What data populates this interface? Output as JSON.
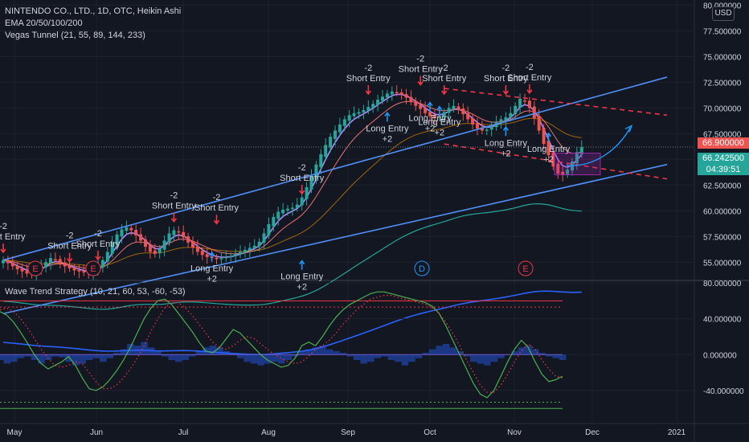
{
  "header": {
    "symbol_line": "NINTENDO CO., LTD., 1D, OTC, Heikin Ashi",
    "ema_line": "EMA 20/50/100/200",
    "vegas_line": "Vegas Tunnel (21, 55, 89, 144, 233)",
    "oscillator_line": "Wave Trend Strategy (10, 21, 60, 53, -60, -53)"
  },
  "currency_button": "USD",
  "price_tags": {
    "last_price": "66.900000",
    "current_price": "66.242500",
    "countdown": "04:39:51",
    "top_partial": "80.000000"
  },
  "colors": {
    "background": "#131722",
    "up": "#26a69a",
    "down": "#ef5350",
    "channel": "#4f8ff7",
    "signal_up": "#2196f3",
    "signal_down": "#f23645"
  },
  "signals": {
    "short": [
      "-2",
      "Short Entry"
    ],
    "long": [
      "Long Entry",
      "+2"
    ]
  },
  "earnings_markers": [
    "E",
    "E",
    "D",
    "E"
  ],
  "chart_data": [
    {
      "type": "candlestick",
      "title": "NINTENDO CO., LTD., 1D, OTC, Heikin Ashi",
      "x_ticks": [
        "May",
        "Jun",
        "Jul",
        "Aug",
        "Sep",
        "Oct",
        "Nov",
        "Dec",
        "2021"
      ],
      "y_ticks": [
        55,
        57.5,
        60,
        62.5,
        65,
        67.5,
        70,
        72.5,
        75,
        77.5,
        80
      ],
      "y_tick_labels": [
        "55.000000",
        "57.500000",
        "60.000000",
        "62.500000",
        "65.000000",
        "67.500000",
        "70.000000",
        "72.500000",
        "75.000000",
        "77.500000",
        "80.000000"
      ],
      "ylim": [
        53.3,
        80.5
      ],
      "grid": true,
      "closes": [
        55.2,
        54.9,
        54.6,
        54.3,
        54.1,
        53.9,
        53.9,
        54.2,
        54.6,
        55.0,
        55.4,
        55.3,
        54.9,
        54.6,
        54.4,
        54.2,
        54.1,
        54.0,
        53.9,
        54.1,
        54.6,
        55.2,
        56.0,
        56.9,
        57.7,
        58.2,
        58.4,
        58.1,
        57.6,
        57.1,
        56.5,
        56.0,
        55.8,
        56.3,
        57.1,
        57.8,
        58.1,
        57.9,
        57.4,
        56.9,
        56.4,
        56.0,
        55.7,
        55.5,
        55.4,
        55.3,
        55.4,
        55.5,
        55.6,
        55.8,
        56.0,
        56.2,
        56.4,
        56.6,
        57.0,
        57.8,
        58.7,
        59.4,
        59.9,
        60.1,
        60.2,
        60.3,
        60.6,
        61.3,
        62.3,
        63.4,
        64.5,
        65.5,
        66.4,
        67.2,
        67.8,
        68.4,
        68.9,
        69.3,
        69.5,
        69.6,
        69.8,
        70.1,
        70.4,
        70.8,
        71.1,
        71.4,
        71.6,
        71.5,
        71.3,
        71.0,
        70.6,
        70.2,
        69.9,
        69.5,
        69.2,
        69.0,
        69.2,
        69.6,
        70.0,
        70.2,
        69.9,
        69.4,
        68.9,
        68.4,
        68.0,
        67.8,
        67.9,
        68.2,
        68.6,
        68.9,
        69.1,
        69.5,
        70.2,
        70.9,
        70.7,
        70.0,
        69.0,
        67.8,
        66.5,
        65.4,
        64.3,
        63.6,
        63.5,
        64.0,
        64.8,
        65.7,
        66.2
      ],
      "channel_lines": {
        "upper_solid": [
          [
            2020.3,
            55.2
          ],
          [
            2020.9,
            73.0
          ]
        ],
        "lower_solid": [
          [
            2020.3,
            50.0
          ],
          [
            2020.9,
            64.5
          ]
        ],
        "upper_dashed": [
          [
            2020.7,
            71.9
          ],
          [
            2020.9,
            69.3
          ]
        ],
        "lower_dashed": [
          [
            2020.7,
            66.5
          ],
          [
            2020.9,
            63.1
          ]
        ]
      },
      "projection_box": [
        63.5,
        65.6
      ],
      "signals": [
        {
          "type": "short",
          "bar": 0,
          "price": 56.5
        },
        {
          "type": "short",
          "bar": 14,
          "price": 55.6
        },
        {
          "type": "short",
          "bar": 20,
          "price": 55.8
        },
        {
          "type": "short",
          "bar": 36,
          "price": 59.5
        },
        {
          "type": "short",
          "bar": 45,
          "price": 59.3
        },
        {
          "type": "short",
          "bar": 63,
          "price": 62.2
        },
        {
          "type": "short",
          "bar": 77,
          "price": 71.9
        },
        {
          "type": "short",
          "bar": 88,
          "price": 72.8
        },
        {
          "type": "short",
          "bar": 93,
          "price": 71.9
        },
        {
          "type": "short",
          "bar": 106,
          "price": 71.9
        },
        {
          "type": "short",
          "bar": 111,
          "price": 72.0
        },
        {
          "type": "long",
          "bar": 44,
          "price": 54.6
        },
        {
          "type": "long",
          "bar": 63,
          "price": 53.8
        },
        {
          "type": "long",
          "bar": 81,
          "price": 68.2
        },
        {
          "type": "long",
          "bar": 90,
          "price": 69.2
        },
        {
          "type": "long",
          "bar": 92,
          "price": 68.8
        },
        {
          "type": "long",
          "bar": 106,
          "price": 66.8
        },
        {
          "type": "long",
          "bar": 115,
          "price": 66.2
        }
      ]
    },
    {
      "type": "line",
      "title": "Wave Trend Strategy (10, 21, 60, 53, -60, -53)",
      "y_ticks": [
        -40,
        0,
        40,
        80
      ],
      "y_tick_labels": [
        "-40.000000",
        "0.000000",
        "40.000000",
        "80.000000"
      ],
      "ylim": [
        -75,
        80
      ],
      "levels": [
        60,
        53,
        0,
        -53,
        -60
      ],
      "series": [
        {
          "values": [
            48,
            44,
            36,
            25,
            13,
            0,
            -10,
            -16,
            -12,
            -8,
            -2,
            -12,
            -26,
            -38,
            -40,
            -36,
            -28,
            -18,
            -6,
            8,
            24,
            40,
            52,
            60,
            62,
            56,
            46,
            36,
            26,
            14,
            4,
            2,
            8,
            18,
            28,
            24,
            16,
            8,
            0,
            -6,
            -10,
            -14,
            -12,
            -4,
            10,
            14,
            10,
            20,
            32,
            42,
            50,
            56,
            60,
            64,
            68,
            70,
            70,
            68,
            66,
            64,
            62,
            60,
            58,
            54,
            46,
            32,
            16,
            0,
            -16,
            -32,
            -44,
            -48,
            -40,
            -24,
            -8,
            6,
            16,
            8,
            -8,
            -22,
            -30,
            -28,
            -24
          ]
        },
        {
          "values": [
            50,
            52,
            48,
            40,
            30,
            18,
            6,
            -4,
            -12,
            -14,
            -12,
            -8,
            -10,
            -20,
            -30,
            -38,
            -38,
            -34,
            -26,
            -16,
            -4,
            10,
            26,
            40,
            52,
            58,
            58,
            52,
            44,
            34,
            24,
            14,
            8,
            6,
            10,
            16,
            20,
            18,
            12,
            6,
            0,
            -4,
            -8,
            -10,
            -8,
            -2,
            6,
            10,
            16,
            24,
            34,
            42,
            50,
            56,
            62,
            64,
            66,
            66,
            64,
            62,
            60,
            58,
            56,
            52,
            46,
            36,
            24,
            10,
            -6,
            -20,
            -34,
            -42,
            -42,
            -34,
            -22,
            -8,
            4,
            12,
            6,
            -6,
            -16,
            -24,
            -26
          ]
        },
        {
          "values": [
            -6,
            -10,
            -8,
            -4,
            -2,
            -6,
            -10,
            -6,
            -2,
            -3,
            -8,
            -12,
            -10,
            -6,
            -4,
            -8,
            -4,
            2,
            6,
            12,
            10,
            14,
            8,
            4,
            -2,
            -6,
            -8,
            -6,
            -2,
            4,
            8,
            10,
            8,
            4,
            2,
            -4,
            -8,
            -10,
            -12,
            -10,
            -8,
            -10,
            -6,
            -2,
            4,
            6,
            8,
            10,
            6,
            4,
            2,
            -2,
            -6,
            -10,
            -8,
            -4,
            -2,
            -6,
            -8,
            -12,
            -8,
            -4,
            2,
            6,
            10,
            12,
            8,
            4,
            -2,
            -8,
            -10,
            -12,
            -8,
            -4,
            0,
            4,
            8,
            10,
            6,
            2,
            -2,
            -4,
            -6
          ]
        }
      ]
    }
  ]
}
